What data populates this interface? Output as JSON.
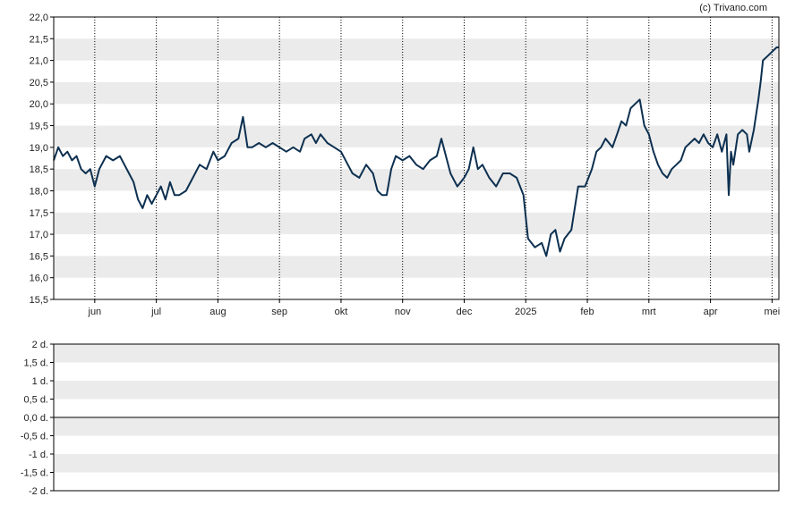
{
  "credit": "(c) Trivano.com",
  "colors": {
    "line": "#0d3050",
    "band": "#ebebeb",
    "axis": "#000000",
    "grid": "#000000"
  },
  "chart_data": [
    {
      "type": "line",
      "title": "",
      "xlabel": "",
      "ylabel": "",
      "ylim": [
        15.5,
        22.0
      ],
      "yticks": [
        "15,5",
        "16,0",
        "16,5",
        "17,0",
        "17,5",
        "18,0",
        "18,5",
        "19,0",
        "19,5",
        "20,0",
        "20,5",
        "21,0",
        "21,5",
        "22,0"
      ],
      "xticks": [
        "jun",
        "jul",
        "aug",
        "sep",
        "okt",
        "nov",
        "dec",
        "2025",
        "feb",
        "mrt",
        "apr",
        "mei"
      ],
      "grid": "dotted vertical at month ticks, alternating horizontal bands",
      "series": [
        {
          "name": "",
          "points": [
            [
              0,
              18.7
            ],
            [
              2,
              19.0
            ],
            [
              4,
              18.8
            ],
            [
              6,
              18.9
            ],
            [
              8,
              18.7
            ],
            [
              10,
              18.8
            ],
            [
              12,
              18.5
            ],
            [
              14,
              18.4
            ],
            [
              16,
              18.5
            ],
            [
              18,
              18.1
            ],
            [
              20,
              18.5
            ],
            [
              23,
              18.8
            ],
            [
              26,
              18.7
            ],
            [
              29,
              18.8
            ],
            [
              31,
              18.6
            ],
            [
              33,
              18.4
            ],
            [
              35,
              18.2
            ],
            [
              37,
              17.8
            ],
            [
              39,
              17.6
            ],
            [
              41,
              17.9
            ],
            [
              43,
              17.7
            ],
            [
              45,
              17.9
            ],
            [
              47,
              18.1
            ],
            [
              49,
              17.8
            ],
            [
              51,
              18.2
            ],
            [
              53,
              17.9
            ],
            [
              55,
              17.9
            ],
            [
              58,
              18.0
            ],
            [
              61,
              18.3
            ],
            [
              64,
              18.6
            ],
            [
              67,
              18.5
            ],
            [
              70,
              18.9
            ],
            [
              72,
              18.7
            ],
            [
              75,
              18.8
            ],
            [
              78,
              19.1
            ],
            [
              81,
              19.2
            ],
            [
              83,
              19.7
            ],
            [
              85,
              19.0
            ],
            [
              87,
              19.0
            ],
            [
              90,
              19.1
            ],
            [
              93,
              19.0
            ],
            [
              96,
              19.1
            ],
            [
              99,
              19.0
            ],
            [
              102,
              18.9
            ],
            [
              105,
              19.0
            ],
            [
              108,
              18.9
            ],
            [
              110,
              19.2
            ],
            [
              113,
              19.3
            ],
            [
              115,
              19.1
            ],
            [
              117,
              19.3
            ],
            [
              120,
              19.1
            ],
            [
              123,
              19.0
            ],
            [
              126,
              18.9
            ],
            [
              129,
              18.6
            ],
            [
              131,
              18.4
            ],
            [
              134,
              18.3
            ],
            [
              137,
              18.6
            ],
            [
              140,
              18.4
            ],
            [
              142,
              18.0
            ],
            [
              144,
              17.9
            ],
            [
              146,
              17.9
            ],
            [
              148,
              18.5
            ],
            [
              150,
              18.8
            ],
            [
              153,
              18.7
            ],
            [
              156,
              18.8
            ],
            [
              159,
              18.6
            ],
            [
              162,
              18.5
            ],
            [
              165,
              18.7
            ],
            [
              168,
              18.8
            ],
            [
              170,
              19.2
            ],
            [
              172,
              18.8
            ],
            [
              174,
              18.4
            ],
            [
              177,
              18.1
            ],
            [
              180,
              18.3
            ],
            [
              182,
              18.5
            ],
            [
              184,
              19.0
            ],
            [
              186,
              18.5
            ],
            [
              188,
              18.6
            ],
            [
              191,
              18.3
            ],
            [
              194,
              18.1
            ],
            [
              197,
              18.4
            ],
            [
              200,
              18.4
            ],
            [
              203,
              18.3
            ],
            [
              206,
              17.9
            ],
            [
              208,
              16.9
            ],
            [
              211,
              16.7
            ],
            [
              214,
              16.8
            ],
            [
              216,
              16.5
            ],
            [
              218,
              17.0
            ],
            [
              220,
              17.1
            ],
            [
              222,
              16.6
            ],
            [
              224,
              16.9
            ],
            [
              227,
              17.1
            ],
            [
              230,
              18.1
            ],
            [
              233,
              18.1
            ],
            [
              236,
              18.5
            ],
            [
              238,
              18.9
            ],
            [
              240,
              19.0
            ],
            [
              242,
              19.2
            ],
            [
              245,
              19.0
            ],
            [
              247,
              19.3
            ],
            [
              249,
              19.6
            ],
            [
              251,
              19.5
            ],
            [
              253,
              19.9
            ],
            [
              255,
              20.0
            ],
            [
              257,
              20.1
            ],
            [
              259,
              19.5
            ],
            [
              261,
              19.3
            ],
            [
              263,
              18.9
            ],
            [
              265,
              18.6
            ],
            [
              267,
              18.4
            ],
            [
              269,
              18.3
            ],
            [
              271,
              18.5
            ],
            [
              273,
              18.6
            ],
            [
              275,
              18.7
            ],
            [
              277,
              19.0
            ],
            [
              279,
              19.1
            ],
            [
              281,
              19.2
            ],
            [
              283,
              19.1
            ],
            [
              285,
              19.3
            ],
            [
              287,
              19.1
            ],
            [
              289,
              19.0
            ],
            [
              291,
              19.3
            ],
            [
              293,
              18.9
            ],
            [
              295,
              19.3
            ],
            [
              296,
              17.9
            ],
            [
              297,
              18.9
            ],
            [
              298,
              18.6
            ],
            [
              300,
              19.3
            ],
            [
              302,
              19.4
            ],
            [
              304,
              19.3
            ],
            [
              305,
              18.9
            ],
            [
              307,
              19.4
            ],
            [
              309,
              20.1
            ],
            [
              310,
              20.5
            ],
            [
              311,
              21.0
            ],
            [
              313,
              21.1
            ],
            [
              315,
              21.2
            ],
            [
              317,
              21.3
            ],
            [
              318,
              21.3
            ]
          ]
        }
      ],
      "x_month_starts": [
        18,
        45,
        72,
        99,
        126,
        153,
        180,
        207,
        234,
        261,
        288,
        315
      ],
      "x_domain": [
        0,
        318
      ]
    },
    {
      "type": "line",
      "title": "",
      "ylim": [
        -2,
        2
      ],
      "yticks": [
        "-2 d.",
        "-1,5 d.",
        "-1 d.",
        "-0,5 d.",
        "0,0 d.",
        "0,5 d.",
        "1 d.",
        "1,5 d.",
        "2 d."
      ],
      "series": []
    }
  ]
}
